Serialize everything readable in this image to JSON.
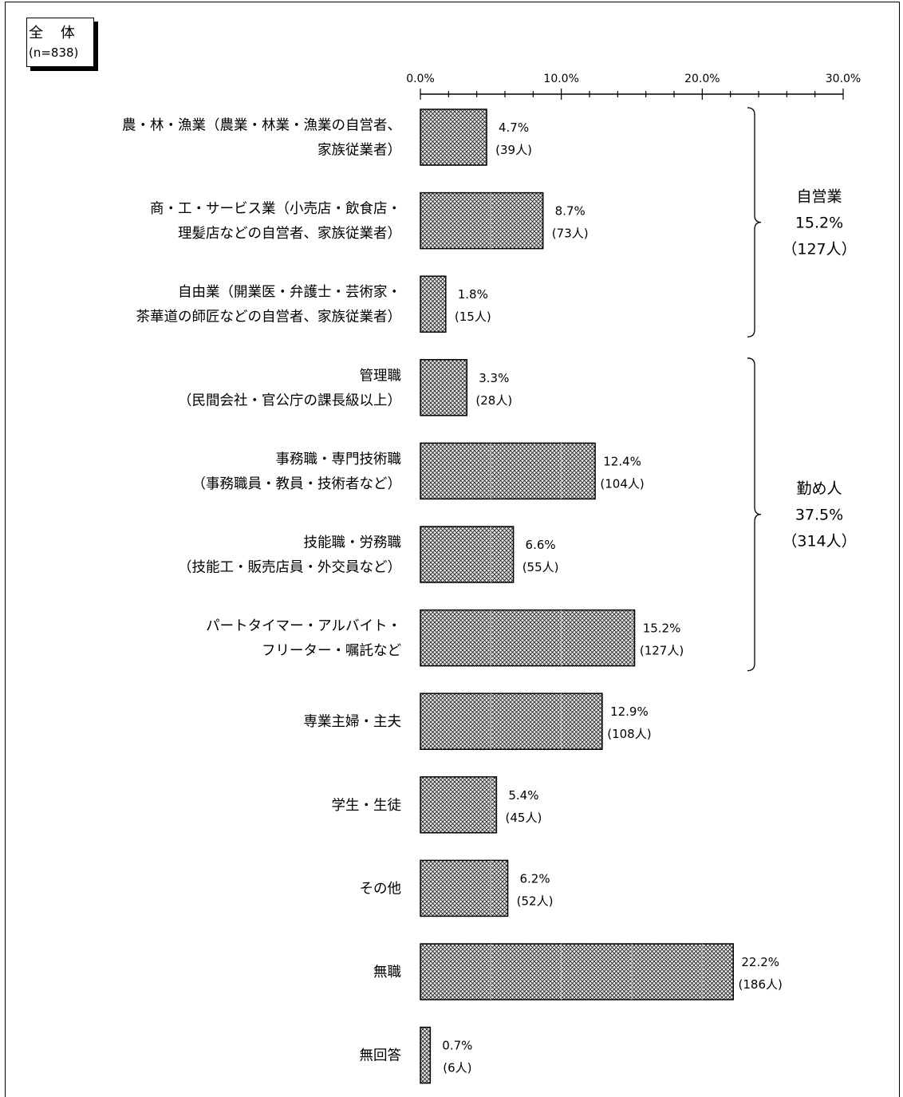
{
  "total": {
    "title": "全 体",
    "n": "(n=838)"
  },
  "chart_data": {
    "type": "bar",
    "orientation": "horizontal",
    "xlim": [
      0,
      30
    ],
    "ticks": [
      "0.0%",
      "10.0%",
      "20.0%",
      "30.0%"
    ],
    "tick_values": [
      0,
      10,
      20,
      30
    ],
    "categories": [
      {
        "lines": [
          "農・林・漁業（農業・林業・漁業の自営者、",
          "家族従業者）"
        ],
        "value": 4.7,
        "pct": "4.7%",
        "count": "(39人)"
      },
      {
        "lines": [
          "商・工・サービス業（小売店・飲食店・",
          "理髪店などの自営者、家族従業者）"
        ],
        "value": 8.7,
        "pct": "8.7%",
        "count": "(73人)"
      },
      {
        "lines": [
          "自由業（開業医・弁護士・芸術家・",
          "茶華道の師匠などの自営者、家族従業者）"
        ],
        "value": 1.8,
        "pct": "1.8%",
        "count": "(15人)"
      },
      {
        "lines": [
          "管理職",
          "（民間会社・官公庁の課長級以上）"
        ],
        "value": 3.3,
        "pct": "3.3%",
        "count": "(28人)"
      },
      {
        "lines": [
          "事務職・専門技術職",
          "（事務職員・教員・技術者など）"
        ],
        "value": 12.4,
        "pct": "12.4%",
        "count": "(104人)"
      },
      {
        "lines": [
          "技能職・労務職",
          "（技能工・販売店員・外交員など）"
        ],
        "value": 6.6,
        "pct": "6.6%",
        "count": "(55人)"
      },
      {
        "lines": [
          "パートタイマー・アルバイト・",
          "フリーター・嘱託など"
        ],
        "value": 15.2,
        "pct": "15.2%",
        "count": "(127人)"
      },
      {
        "lines": [
          "専業主婦・主夫"
        ],
        "value": 12.9,
        "pct": "12.9%",
        "count": "(108人)"
      },
      {
        "lines": [
          "学生・生徒"
        ],
        "value": 5.4,
        "pct": "5.4%",
        "count": "(45人)"
      },
      {
        "lines": [
          "その他"
        ],
        "value": 6.2,
        "pct": "6.2%",
        "count": "(52人)"
      },
      {
        "lines": [
          "無職"
        ],
        "value": 22.2,
        "pct": "22.2%",
        "count": "(186人)"
      },
      {
        "lines": [
          "無回答"
        ],
        "value": 0.7,
        "pct": "0.7%",
        "count": "(6人)"
      }
    ],
    "groups": [
      {
        "label": "自営業",
        "pct": "15.2%",
        "count": "（127人）",
        "from": 0,
        "to": 2
      },
      {
        "label": "勤め人",
        "pct": "37.5%",
        "count": "（314人）",
        "from": 3,
        "to": 6
      }
    ]
  }
}
